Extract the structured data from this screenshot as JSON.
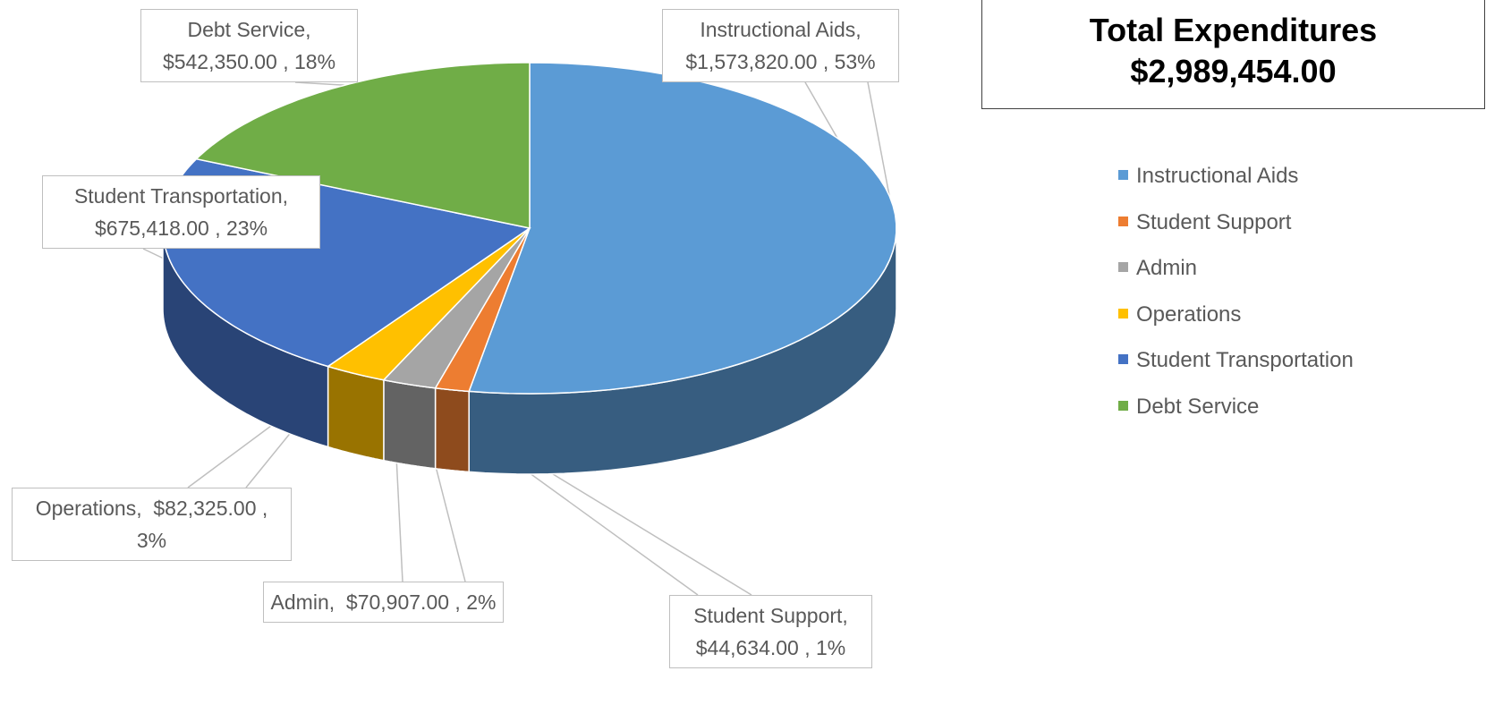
{
  "chart_data": {
    "type": "pie3d",
    "annotations": [
      "Total Expenditures",
      "$2,989,454.00"
    ],
    "categories": [
      "Instructional Aids",
      "Student Support",
      "Admin",
      "Operations",
      "Student Transportation",
      "Debt Service"
    ],
    "values": [
      1573820,
      44634,
      70907,
      82325,
      675418,
      542350
    ],
    "value_labels": [
      "Instructional Aids, $1,573,820.00 , 53%",
      "Student Support, $44,634.00 , 1%",
      "Admin,  $70,907.00 , 2%",
      "Operations,  $82,325.00 , 3%",
      "Student Transportation, $675,418.00 , 23%",
      "Debt Service, $542,350.00 , 18%"
    ],
    "colors": [
      "#5b9bd5",
      "#ed7d31",
      "#a5a5a5",
      "#ffc000",
      "#4472c4",
      "#70ad47"
    ],
    "legend": "right"
  }
}
